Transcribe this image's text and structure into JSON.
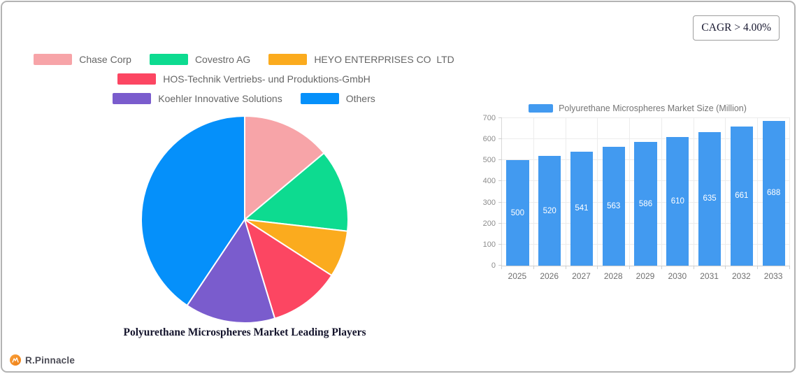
{
  "cagr_box": {
    "label": "CAGR > 4.00%"
  },
  "brand": {
    "name": "R.Pinnacle",
    "logo_color": "#f6921e"
  },
  "chart_data": [
    {
      "type": "pie",
      "title": "Polyurethane Microspheres Market Leading Players",
      "legend_position": "top",
      "start_angle_deg": 0,
      "direction": "clockwise",
      "slices": [
        {
          "label": "Chase Corp",
          "value": 13.9,
          "color": "#f7a4a8"
        },
        {
          "label": "Covestro AG",
          "value": 12.9,
          "color": "#0ddb90"
        },
        {
          "label": "HEYO ENTERPRISES CO  LTD",
          "value": 7.3,
          "color": "#fbab1e"
        },
        {
          "label": "HOS-Technik Vertriebs- und Produktions-GmbH",
          "value": 11.2,
          "color": "#fc4662"
        },
        {
          "label": "Koehler Innovative Solutions",
          "value": 14.1,
          "color": "#7a5ccd"
        },
        {
          "label": "Others",
          "value": 40.6,
          "color": "#0590fa"
        }
      ]
    },
    {
      "type": "bar",
      "legend": "Polyurethane Microspheres Market Size (Million)",
      "legend_position": "top",
      "bar_color": "#429af0",
      "categories": [
        "2025",
        "2026",
        "2027",
        "2028",
        "2029",
        "2030",
        "2031",
        "2032",
        "2033"
      ],
      "values": [
        500,
        520,
        541,
        563,
        586,
        610,
        635,
        661,
        688
      ],
      "y_ticks": [
        0,
        100,
        200,
        300,
        400,
        500,
        600,
        700
      ],
      "ylim": [
        0,
        700
      ],
      "grid": true,
      "xlabel": "",
      "ylabel": ""
    }
  ]
}
